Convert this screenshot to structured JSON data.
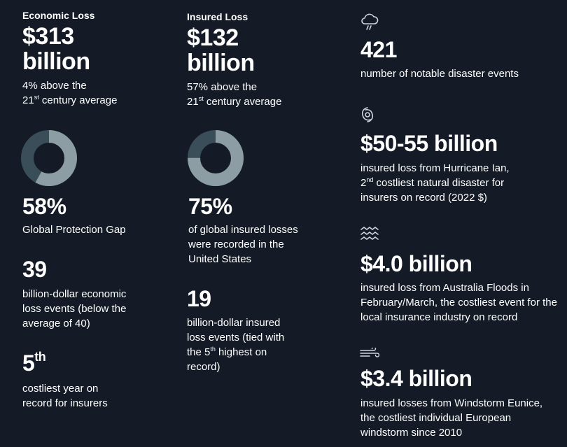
{
  "colors": {
    "background": "#141b26",
    "donut_light": "#8c9ea3",
    "donut_dark": "#3a4e5a"
  },
  "economic": {
    "heading": "Economic Loss",
    "amount_line1": "$313",
    "amount_line2": "billion",
    "note_line1": "4% above the",
    "note_prefix": "21",
    "note_sup": "st",
    "note_suffix": " century average",
    "gap_percent_value": 58,
    "gap_percent": "58%",
    "gap_label": "Global Protection Gap",
    "events_count": "39",
    "events_text": "billion-dollar economic loss events (below the average of 40)",
    "rank_num": "5",
    "rank_sup": "th",
    "rank_text": "costliest year on record for insurers"
  },
  "insured": {
    "heading": "Insured Loss",
    "amount_line1": "$132",
    "amount_line2": "billion",
    "note_line1": "57% above the",
    "note_prefix": "21",
    "note_sup": "st",
    "note_suffix": " century average",
    "us_percent_value": 75,
    "us_percent": "75%",
    "us_label": "of global insured losses were recorded in the United States",
    "events_count": "19",
    "events_text_a": "billion-dollar insured loss events (tied with the 5",
    "events_sup": "th",
    "events_text_b": " highest on record)"
  },
  "right": {
    "disasters": {
      "icon": "storm-cloud-icon",
      "value": "421",
      "text": "number of notable disaster events"
    },
    "hurricane": {
      "icon": "hurricane-icon",
      "value": "$50-55 billion",
      "text_a": "insured loss from Hurricane Ian,",
      "text_b_prefix": "2",
      "text_b_sup": "nd",
      "text_b_suffix": " costliest natural disaster for insurers on record (2022 $)"
    },
    "floods": {
      "icon": "waves-icon",
      "value": "$4.0 billion",
      "text": "insured loss from Australia Floods in February/March, the costliest event for the local insurance industry on record"
    },
    "windstorm": {
      "icon": "wind-icon",
      "value": "$3.4 billion",
      "text": "insured losses from Windstorm Eunice, the costliest individual European windstorm since 2010"
    }
  }
}
